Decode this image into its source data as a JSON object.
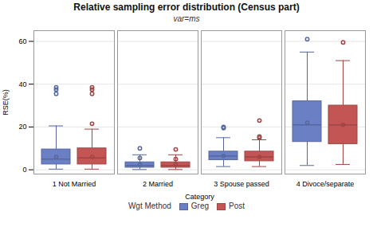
{
  "chart_data": {
    "type": "box",
    "title": "Relative sampling error distribution (Census part)",
    "subtitle": "var=ms",
    "xlabel": "Category",
    "ylabel": "RSE(%)",
    "legend_title": "Wgt Method",
    "legend": "bottom",
    "grid": true,
    "ylim": [
      -2,
      65
    ],
    "yticks": [
      0,
      20,
      40,
      60
    ],
    "categories": [
      "1 Not Married",
      "2 Married",
      "3 Spouse passed",
      "4 Divoce/separate"
    ],
    "series": [
      {
        "name": "Greg",
        "color": "#6b7fc4",
        "values": [
          {
            "q1": 2.5,
            "median": 5.0,
            "q3": 9.5,
            "whislo": 0.3,
            "whishi": 20.5,
            "mean": 6.0,
            "fliers": [
              35.5,
              37.5,
              38.5
            ]
          },
          {
            "q1": 1.0,
            "median": 2.0,
            "q3": 3.5,
            "whislo": 0.1,
            "whishi": 7.0,
            "mean": 2.5,
            "fliers": [
              5.5,
              10.0
            ]
          },
          {
            "q1": 4.5,
            "median": 6.5,
            "q3": 8.5,
            "whislo": 1.5,
            "whishi": 15.0,
            "mean": 6.5,
            "fliers": [
              19.5,
              20.0
            ]
          },
          {
            "q1": 13.0,
            "median": 21.0,
            "q3": 32.0,
            "whislo": 2.0,
            "whishi": 55.0,
            "mean": 22.0,
            "fliers": [
              61.0
            ]
          }
        ]
      },
      {
        "name": "Post",
        "color": "#c45555",
        "values": [
          {
            "q1": 2.5,
            "median": 5.5,
            "q3": 10.0,
            "whislo": 0.3,
            "whishi": 19.0,
            "mean": 6.0,
            "fliers": [
              21.5,
              35.5,
              37.5,
              38.5
            ]
          },
          {
            "q1": 1.0,
            "median": 2.0,
            "q3": 3.5,
            "whislo": 0.1,
            "whishi": 7.0,
            "mean": 2.5,
            "fliers": [
              5.0,
              9.5
            ]
          },
          {
            "q1": 4.0,
            "median": 6.0,
            "q3": 8.5,
            "whislo": 1.5,
            "whishi": 14.0,
            "mean": 6.0,
            "fliers": [
              15.0,
              15.5,
              23.0
            ]
          },
          {
            "q1": 12.0,
            "median": 21.0,
            "q3": 30.0,
            "whislo": 2.5,
            "whishi": 51.0,
            "mean": 21.0,
            "fliers": [
              59.5
            ]
          }
        ]
      }
    ]
  }
}
